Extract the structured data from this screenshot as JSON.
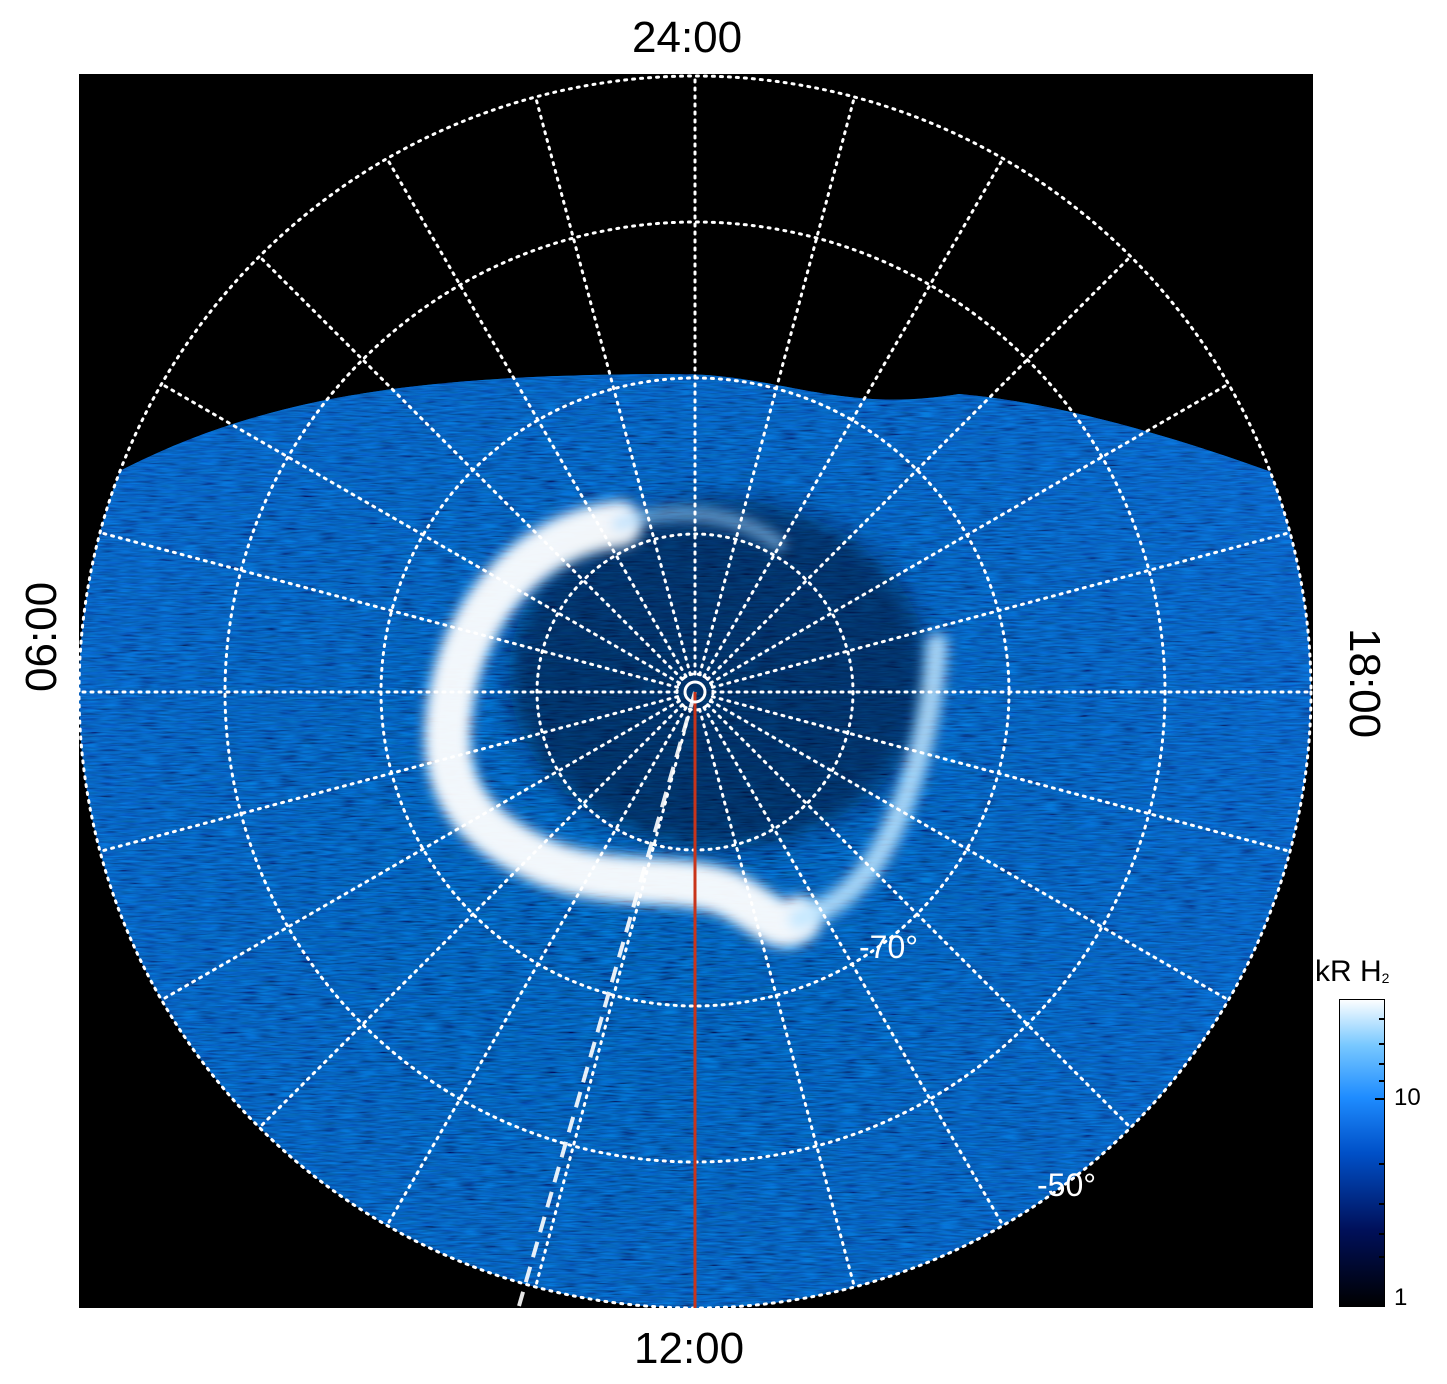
{
  "local_time_labels": {
    "top": "24:00",
    "bottom": "12:00",
    "left": "06:00",
    "right": "18:00"
  },
  "latitude_labels": [
    "-70°",
    "-50°"
  ],
  "colorbar": {
    "title": "kR H",
    "title_subscript": "2",
    "ticks": [
      "10",
      "1"
    ],
    "scale": "log",
    "colors": [
      "#000000",
      "#00105a",
      "#0050c8",
      "#1e8cff",
      "#78c8ff",
      "#ffffff"
    ]
  },
  "colors": {
    "background": "#000000",
    "grid": "#ffffff",
    "midday_meridian": "#c8341a",
    "aurora": "#ffffff"
  }
}
